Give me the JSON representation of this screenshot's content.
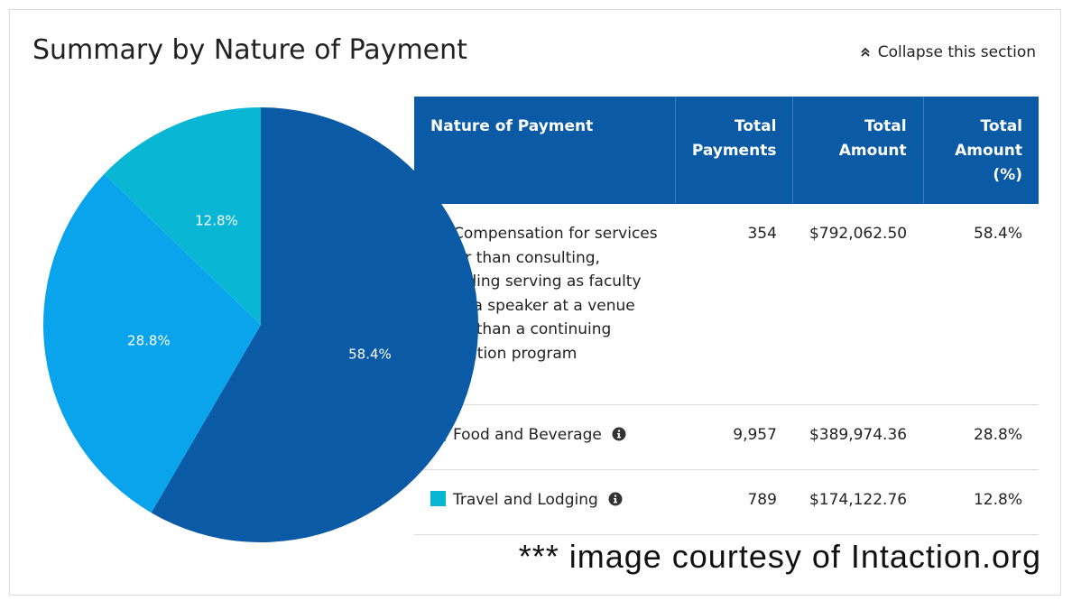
{
  "header": {
    "title": "Summary by Nature of Payment",
    "collapse_label": "Collapse this section"
  },
  "table": {
    "columns": [
      "Nature of Payment",
      "Total Payments",
      "Total Amount",
      "Total Amount (%)"
    ],
    "rows": [
      {
        "nature": "Compensation for services other than consulting, including serving as faculty or as a speaker at a venue other than a continuing education program",
        "payments": "354",
        "amount": "$792,062.50",
        "percent": "58.4%",
        "color": "#0a5aa6"
      },
      {
        "nature": "Food and Beverage",
        "payments": "9,957",
        "amount": "$389,974.36",
        "percent": "28.8%",
        "color": "#0aa4ec"
      },
      {
        "nature": "Travel and Lodging",
        "payments": "789",
        "amount": "$174,122.76",
        "percent": "12.8%",
        "color": "#09b7d4"
      }
    ]
  },
  "chart_data": {
    "type": "pie",
    "categories": [
      "Compensation for services other than consulting, including serving as faculty or as a speaker at a venue other than a continuing education program",
      "Food and Beverage",
      "Travel and Lodging"
    ],
    "values": [
      58.4,
      28.8,
      12.8
    ],
    "labels": [
      "58.4%",
      "28.8%",
      "12.8%"
    ],
    "colors": [
      "#0a5aa6",
      "#0aa4ec",
      "#09b7d4"
    ],
    "title": "Summary by Nature of Payment"
  },
  "watermark": "*** image courtesy of Intaction.org"
}
